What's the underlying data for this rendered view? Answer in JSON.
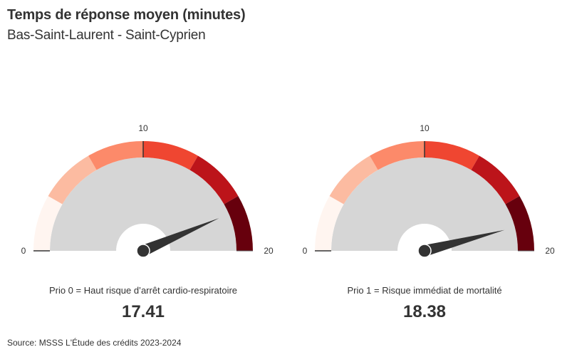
{
  "header": {
    "title": "Temps de réponse moyen (minutes)",
    "subtitle": "Bas-Saint-Laurent - Saint-Cyprien"
  },
  "colors": {
    "bands": [
      "#fff5f0",
      "#fcbba1",
      "#fc8a6a",
      "#ef4631",
      "#bc141a",
      "#67000d"
    ],
    "track": "#d6d6d6",
    "needle": "#333333"
  },
  "gauges": [
    {
      "caption": "Prio 0 = Haut risque d’arrêt cardio-respiratoire",
      "value_label": "17.41",
      "value": 17.41,
      "min_label": "0",
      "mid_label": "10",
      "max_label": "20"
    },
    {
      "caption": "Prio 1 = Risque immédiat de mortalité",
      "value_label": "18.38",
      "value": 18.38,
      "min_label": "0",
      "mid_label": "10",
      "max_label": "20"
    }
  ],
  "footer": {
    "source": "Source: MSSS L'Étude des crédits 2023-2024"
  },
  "chart_data": {
    "type": "gauge",
    "title": "Temps de réponse moyen (minutes)",
    "subtitle": "Bas-Saint-Laurent - Saint-Cyprien",
    "range": [
      0,
      20
    ],
    "ticks": [
      0,
      10,
      20
    ],
    "bands": [
      {
        "from": 0,
        "to": 3.33,
        "color": "#fff5f0"
      },
      {
        "from": 3.33,
        "to": 6.67,
        "color": "#fcbba1"
      },
      {
        "from": 6.67,
        "to": 10,
        "color": "#fc8a6a"
      },
      {
        "from": 10,
        "to": 13.33,
        "color": "#ef4631"
      },
      {
        "from": 13.33,
        "to": 16.67,
        "color": "#bc141a"
      },
      {
        "from": 16.67,
        "to": 20,
        "color": "#67000d"
      }
    ],
    "series": [
      {
        "name": "Prio 0 = Haut risque d’arrêt cardio-respiratoire",
        "value": 17.41
      },
      {
        "name": "Prio 1 = Risque immédiat de mortalité",
        "value": 18.38
      }
    ],
    "source": "Source: MSSS L'Étude des crédits 2023-2024"
  }
}
